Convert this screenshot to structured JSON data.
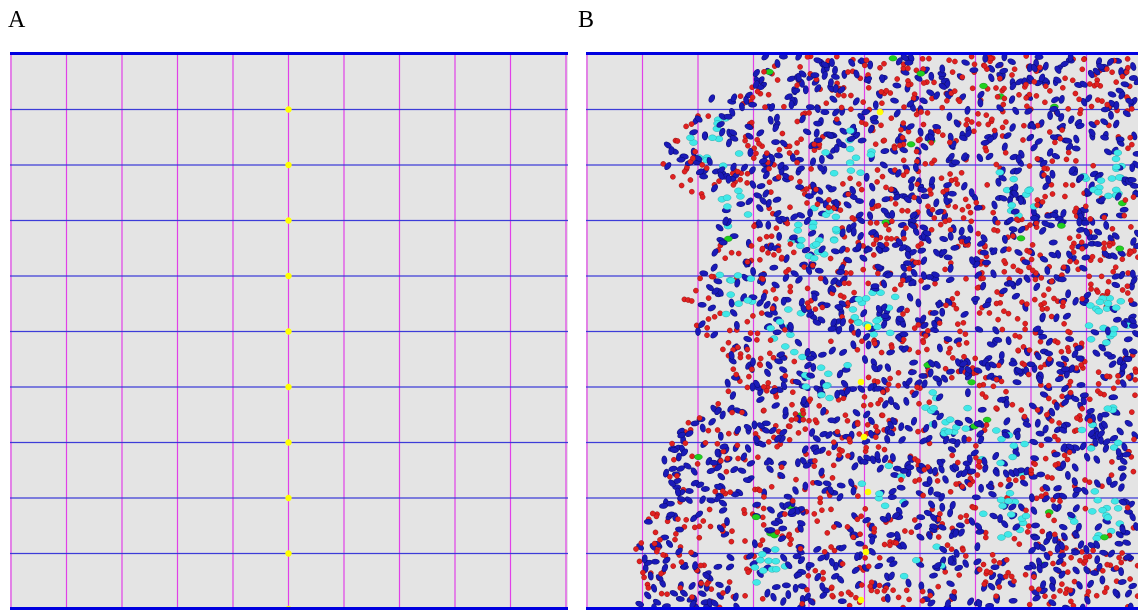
{
  "panels": [
    {
      "label": "A",
      "state": "initial"
    },
    {
      "label": "B",
      "state": "developed"
    }
  ],
  "grid": {
    "columns": 10,
    "rows": 10,
    "background_color": "#e4e4e4",
    "vertical_line_color": "#e040e8",
    "horizontal_line_color": "#3c3cd8",
    "border_color": "#0000e0"
  },
  "seed_cells": {
    "color": "#ffff00",
    "column_line": 5,
    "row_lines": [
      1,
      2,
      3,
      4,
      5,
      6,
      7,
      8,
      9,
      10
    ]
  },
  "cell_types": [
    {
      "name": "blue",
      "color": "#1a1ab8"
    },
    {
      "name": "red",
      "color": "#e02020"
    },
    {
      "name": "cyan",
      "color": "#40e8e8"
    },
    {
      "name": "green",
      "color": "#20d020"
    },
    {
      "name": "yellow",
      "color": "#ffff00"
    }
  ]
}
